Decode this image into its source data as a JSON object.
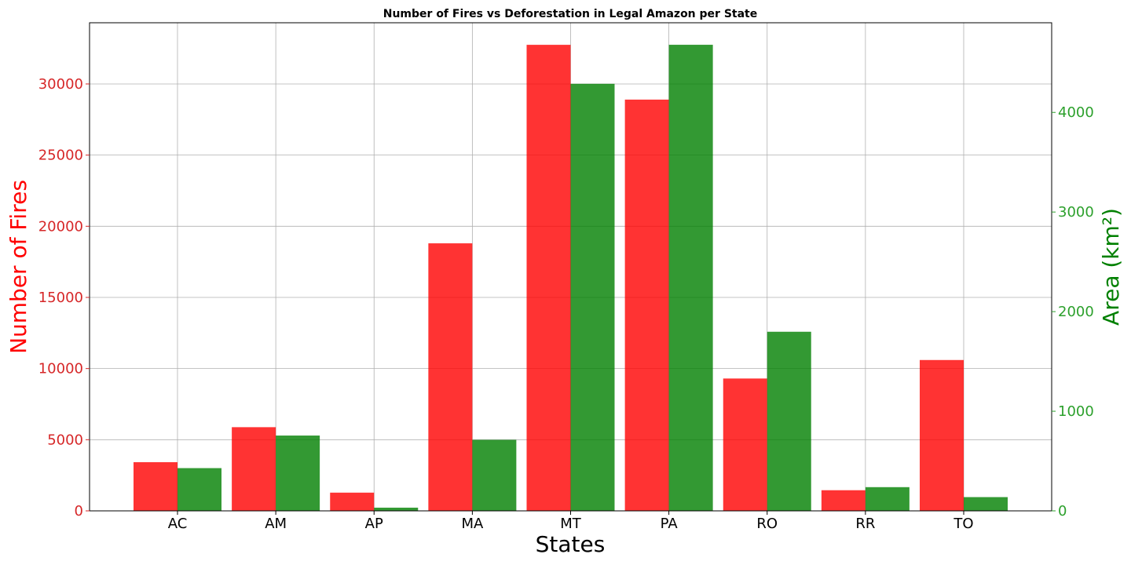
{
  "chart_data": {
    "type": "bar",
    "title": "Number of Fires vs Deforestation in Legal Amazon per State",
    "xlabel": "States",
    "ylabel_left": "Number of Fires",
    "ylabel_right": "Area (km²)",
    "categories": [
      "AC",
      "AM",
      "AP",
      "MA",
      "MT",
      "PA",
      "RO",
      "RR",
      "TO"
    ],
    "series": [
      {
        "name": "Number of Fires",
        "axis": "left",
        "color": "#ff0000",
        "values": [
          3420,
          5880,
          1280,
          18800,
          32750,
          28900,
          9300,
          1450,
          10600
        ]
      },
      {
        "name": "Area (km²)",
        "axis": "right",
        "color": "#008000",
        "values": [
          429,
          756,
          32,
          713,
          4287,
          4679,
          1798,
          238,
          138
        ]
      }
    ],
    "ylim_left": [
      0,
      34300
    ],
    "ylim_right": [
      0,
      4900
    ],
    "yticks_left": [
      "0",
      "5000",
      "10000",
      "15000",
      "20000",
      "25000",
      "30000"
    ],
    "yticks_right": [
      "0",
      "1000",
      "2000",
      "3000",
      "4000"
    ],
    "grid": true,
    "left_axis_color": "#d62728",
    "right_axis_color": "#2ca02c",
    "left_label_color": "#ff0000",
    "right_label_color": "#008000"
  }
}
